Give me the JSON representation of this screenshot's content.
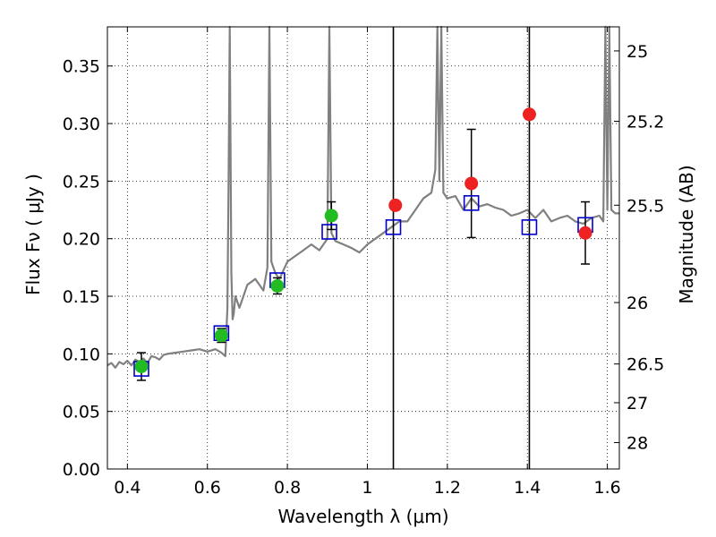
{
  "chart_data": {
    "type": "scatter",
    "xlabel": "Wavelength  λ (μm)",
    "ylabel": "Flux  Fν  ( μJy )",
    "y2label": "Magnitude (AB)",
    "xlim": [
      0.35,
      1.63
    ],
    "ylim": [
      0.0,
      0.384
    ],
    "grid": true,
    "x_ticks": [
      {
        "value": 0.4,
        "label": "0.4"
      },
      {
        "value": 0.6,
        "label": "0.6"
      },
      {
        "value": 0.8,
        "label": "0.8"
      },
      {
        "value": 1.0,
        "label": "1"
      },
      {
        "value": 1.2,
        "label": "1.2"
      },
      {
        "value": 1.4,
        "label": "1.4"
      },
      {
        "value": 1.6,
        "label": "1.6"
      }
    ],
    "y_ticks": [
      {
        "value": 0.0,
        "label": "0.00"
      },
      {
        "value": 0.05,
        "label": "0.05"
      },
      {
        "value": 0.1,
        "label": "0.10"
      },
      {
        "value": 0.15,
        "label": "0.15"
      },
      {
        "value": 0.2,
        "label": "0.20"
      },
      {
        "value": 0.25,
        "label": "0.25"
      },
      {
        "value": 0.3,
        "label": "0.30"
      },
      {
        "value": 0.35,
        "label": "0.35"
      }
    ],
    "y2_ticks": [
      {
        "value": 25,
        "label": "25"
      },
      {
        "value": 25.2,
        "label": "25.2"
      },
      {
        "value": 25.5,
        "label": "25.5"
      },
      {
        "value": 26,
        "label": "26"
      },
      {
        "value": 26.5,
        "label": "26.5"
      },
      {
        "value": 27,
        "label": "27"
      },
      {
        "value": 28,
        "label": "28"
      }
    ],
    "vertical_lines": [
      1.065,
      1.405
    ],
    "model_spectrum": {
      "color": "#808080",
      "x": [
        0.35,
        0.36,
        0.37,
        0.38,
        0.39,
        0.4,
        0.41,
        0.42,
        0.43,
        0.44,
        0.45,
        0.46,
        0.47,
        0.48,
        0.49,
        0.5,
        0.52,
        0.54,
        0.56,
        0.58,
        0.6,
        0.62,
        0.635,
        0.645,
        0.65,
        0.653,
        0.656,
        0.66,
        0.663,
        0.666,
        0.67,
        0.68,
        0.7,
        0.72,
        0.74,
        0.75,
        0.755,
        0.76,
        0.77,
        0.78,
        0.8,
        0.82,
        0.84,
        0.86,
        0.88,
        0.9,
        0.905,
        0.91,
        0.92,
        0.94,
        0.96,
        0.98,
        1.0,
        1.02,
        1.04,
        1.06,
        1.08,
        1.1,
        1.12,
        1.14,
        1.16,
        1.17,
        1.175,
        1.18,
        1.185,
        1.19,
        1.2,
        1.22,
        1.24,
        1.26,
        1.28,
        1.3,
        1.32,
        1.34,
        1.36,
        1.38,
        1.4,
        1.42,
        1.44,
        1.46,
        1.48,
        1.5,
        1.52,
        1.54,
        1.56,
        1.58,
        1.59,
        1.595,
        1.6,
        1.605,
        1.61,
        1.62,
        1.63
      ],
      "y": [
        0.09,
        0.092,
        0.088,
        0.093,
        0.091,
        0.094,
        0.09,
        0.095,
        0.093,
        0.096,
        0.092,
        0.098,
        0.097,
        0.095,
        0.099,
        0.1,
        0.101,
        0.102,
        0.103,
        0.104,
        0.102,
        0.104,
        0.101,
        0.098,
        0.14,
        0.25,
        0.384,
        0.17,
        0.13,
        0.135,
        0.15,
        0.14,
        0.16,
        0.165,
        0.155,
        0.175,
        0.384,
        0.18,
        0.17,
        0.165,
        0.18,
        0.185,
        0.19,
        0.195,
        0.19,
        0.2,
        0.384,
        0.205,
        0.198,
        0.195,
        0.192,
        0.188,
        0.195,
        0.2,
        0.205,
        0.21,
        0.215,
        0.215,
        0.225,
        0.235,
        0.24,
        0.26,
        0.384,
        0.25,
        0.384,
        0.24,
        0.235,
        0.237,
        0.225,
        0.235,
        0.228,
        0.23,
        0.227,
        0.225,
        0.22,
        0.222,
        0.225,
        0.218,
        0.225,
        0.215,
        0.218,
        0.22,
        0.215,
        0.213,
        0.218,
        0.22,
        0.215,
        0.384,
        0.225,
        0.384,
        0.225,
        0.222,
        0.222
      ]
    },
    "series": [
      {
        "name": "",
        "marker": "square",
        "color": "#0000cc",
        "x": [
          0.435,
          0.635,
          0.775,
          0.905,
          1.065,
          1.26,
          1.405,
          1.545
        ],
        "y": [
          0.087,
          0.118,
          0.164,
          0.206,
          0.21,
          0.231,
          0.21,
          0.212
        ]
      },
      {
        "name": "",
        "marker": "circle",
        "color": "#22bb22",
        "x": [
          0.435,
          0.635,
          0.775,
          0.91
        ],
        "y": [
          0.089,
          0.116,
          0.159,
          0.22
        ],
        "yerr": [
          0.012,
          0.006,
          0.007,
          0.012
        ]
      },
      {
        "name": "",
        "marker": "circle",
        "color": "#ee2222",
        "x": [
          1.07,
          1.26,
          1.405,
          1.545
        ],
        "y": [
          0.229,
          0.248,
          0.308,
          0.205
        ],
        "yerr": [
          0,
          0.047,
          0,
          0.027
        ]
      }
    ]
  }
}
